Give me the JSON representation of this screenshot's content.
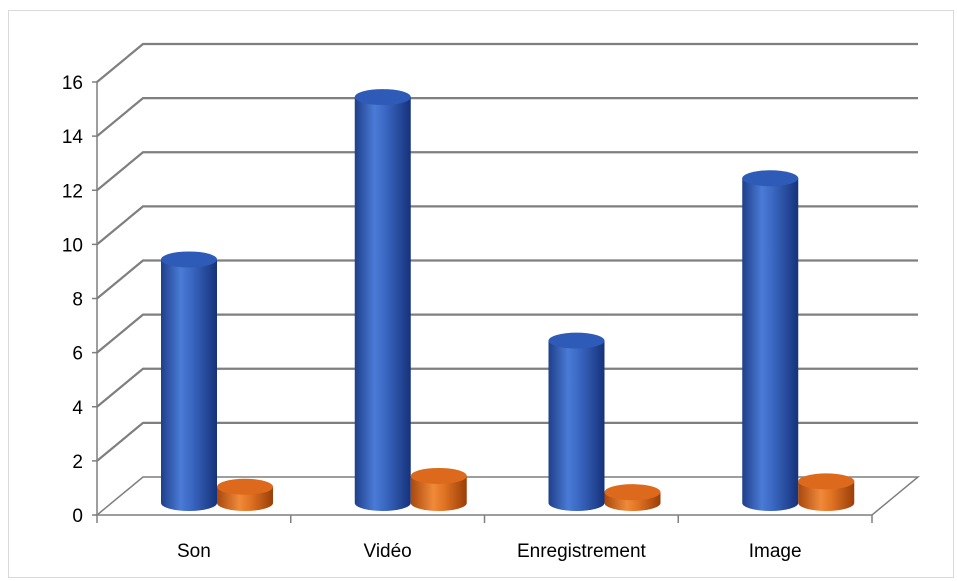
{
  "chart_data": {
    "type": "bar",
    "style": "3d-cylinder",
    "categories": [
      "Son",
      "Vidéo",
      "Enregistrement",
      "Image"
    ],
    "series": [
      {
        "values": [
          9,
          15,
          6,
          12
        ],
        "color": "#4472c4"
      },
      {
        "values": [
          0.6,
          1.0,
          0.4,
          0.8
        ],
        "color": "#ed7d31"
      }
    ],
    "ylim": [
      0,
      16
    ],
    "yticks": [
      "0",
      "2",
      "4",
      "6",
      "8",
      "10",
      "12",
      "14",
      "16"
    ],
    "grid": true,
    "legend": "none",
    "gridline_color": "#7f7f7f"
  }
}
